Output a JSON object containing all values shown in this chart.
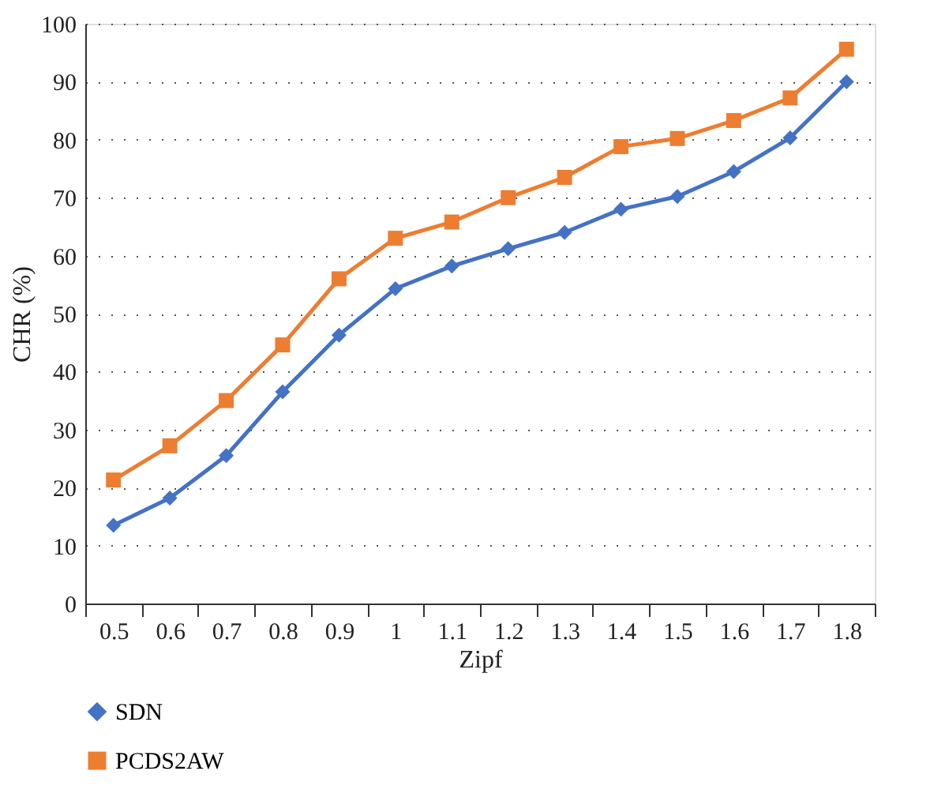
{
  "chart_data": {
    "type": "line",
    "xlabel": "Zipf",
    "ylabel": "CHR (%)",
    "categories": [
      "0.5",
      "0.6",
      "0.7",
      "0.8",
      "0.9",
      "1",
      "1.1",
      "1.2",
      "1.3",
      "1.4",
      "1.5",
      "1.6",
      "1.7",
      "1.8"
    ],
    "series": [
      {
        "name": "SDN",
        "color": "#4472c4",
        "marker": "diamond",
        "values": [
          13.5,
          18.2,
          25.5,
          36.5,
          46.3,
          54.3,
          58.2,
          61.2,
          64,
          68,
          70.2,
          74.5,
          80.3,
          90
        ]
      },
      {
        "name": "PCDS2AW",
        "color": "#ed7d31",
        "marker": "square",
        "values": [
          21.3,
          27.2,
          35,
          44.6,
          56,
          63,
          65.8,
          70,
          73.5,
          78.8,
          80.2,
          83.3,
          87.2,
          95.6
        ]
      }
    ],
    "ylim": [
      0,
      100
    ],
    "yticks": [
      0,
      10,
      20,
      30,
      40,
      50,
      60,
      70,
      80,
      90,
      100
    ],
    "grid": "y",
    "legend": "bottom",
    "line_style": "solid"
  }
}
